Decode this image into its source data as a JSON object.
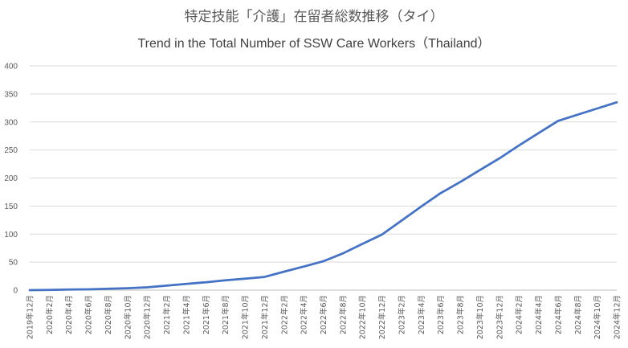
{
  "chart_data": {
    "type": "line",
    "title": "特定技能「介護」在留者総数推移（タイ）",
    "subtitle": "Trend in the Total Number of SSW Care Workers（Thailand）",
    "xlabel": "",
    "ylabel": "",
    "ylim": [
      0,
      400
    ],
    "yticks": [
      0,
      50,
      100,
      150,
      200,
      250,
      300,
      350,
      400
    ],
    "grid": true,
    "legend": "none",
    "colors": {
      "line": "#4472C4",
      "grid": "#d9d9d9",
      "text": "#595959"
    },
    "categories": [
      "2019年12月",
      "2020年2月",
      "2020年4月",
      "2020年6月",
      "2020年8月",
      "2020年10月",
      "2020年12月",
      "2021年2月",
      "2021年4月",
      "2021年6月",
      "2021年8月",
      "2021年10月",
      "2021年12月",
      "2022年2月",
      "2022年4月",
      "2022年6月",
      "2022年8月",
      "2022年10月",
      "2022年12月",
      "2023年2月",
      "2023年4月",
      "2023年6月",
      "2023年8月",
      "2023年10月",
      "2023年12月",
      "2024年2月",
      "2024年4月",
      "2024年6月",
      "2024年8月",
      "2024年10月",
      "2024年12月"
    ],
    "series": [
      {
        "values": [
          0,
          0.5,
          1,
          1.5,
          2.5,
          3.5,
          5,
          8,
          11,
          14,
          17.5,
          20.5,
          23.5,
          33,
          42,
          51.5,
          65.5,
          82.5,
          99,
          124,
          149,
          173,
          193,
          214,
          235,
          258,
          280,
          302,
          313,
          324,
          335
        ]
      }
    ]
  }
}
